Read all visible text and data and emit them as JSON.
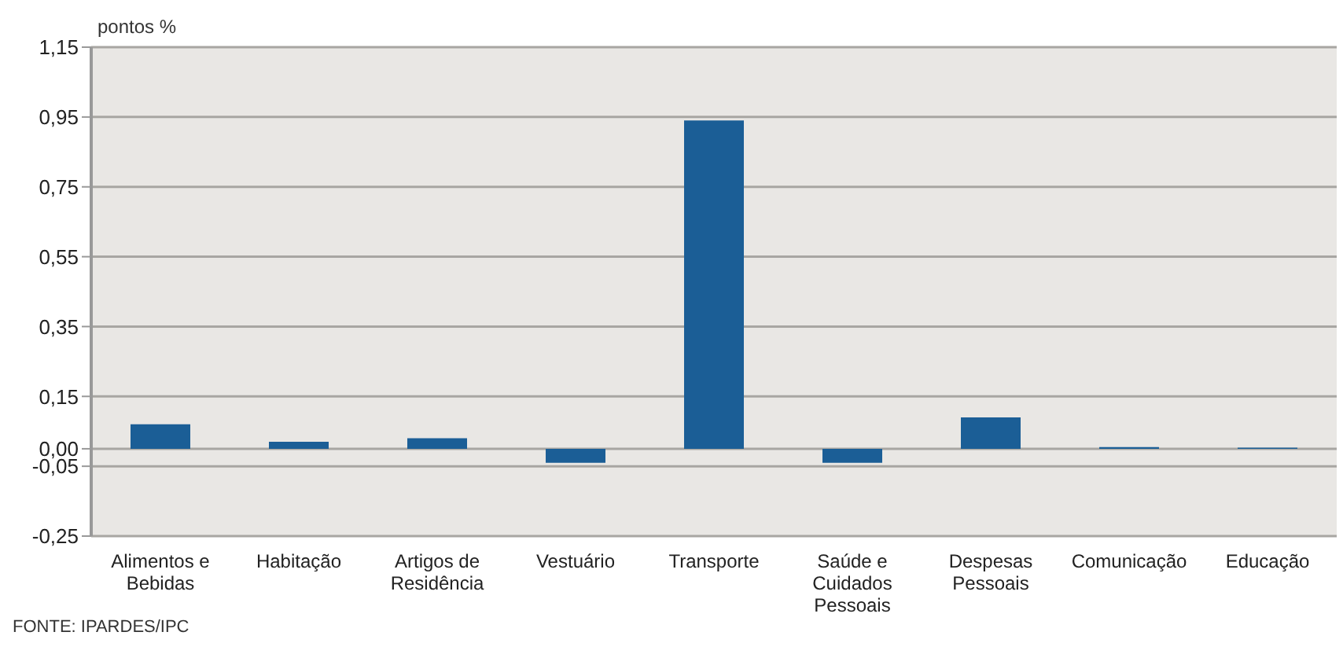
{
  "chart_data": {
    "type": "bar",
    "ylabel": "pontos %",
    "categories": [
      "Alimentos e Bebidas",
      "Habitação",
      "Artigos de Residência",
      "Vestuário",
      "Transporte",
      "Saúde e Cuidados Pessoais",
      "Despesas Pessoais",
      "Comunicação",
      "Educação"
    ],
    "values": [
      0.07,
      0.02,
      0.03,
      -0.04,
      0.94,
      -0.04,
      0.09,
      0.005,
      0.003
    ],
    "color": "#1b5e96",
    "ylim": [
      -0.25,
      1.15
    ],
    "yticks": [
      {
        "value": -0.25,
        "label": "-0,25"
      },
      {
        "value": -0.05,
        "label": "-0,05"
      },
      {
        "value": 0,
        "label": "0,00"
      },
      {
        "value": 0.15,
        "label": "0,15"
      },
      {
        "value": 0.35,
        "label": "0,35"
      },
      {
        "value": 0.55,
        "label": "0,55"
      },
      {
        "value": 0.75,
        "label": "0,75"
      },
      {
        "value": 0.95,
        "label": "0,95"
      },
      {
        "value": 1.15,
        "label": "1,15"
      }
    ],
    "grid": "y",
    "annotations": [
      "FONTE: IPARDES/IPC"
    ]
  }
}
